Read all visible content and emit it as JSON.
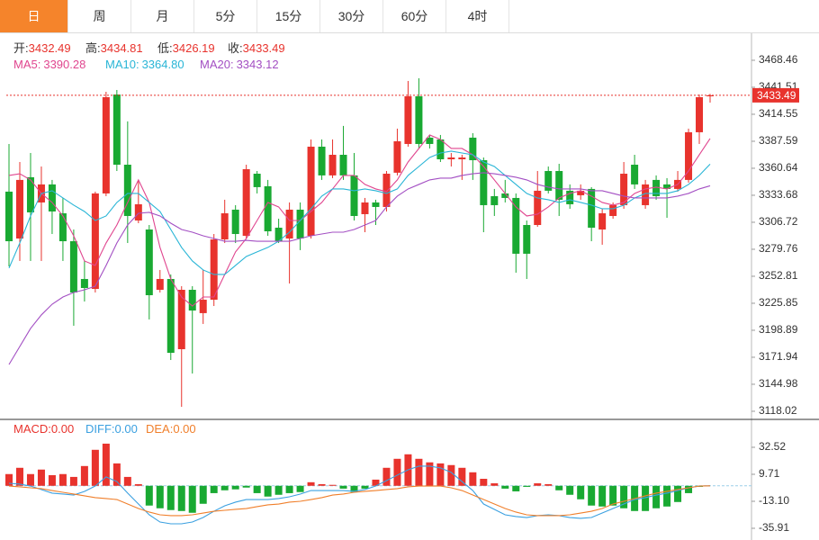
{
  "tabs": [
    "日",
    "周",
    "月",
    "5分",
    "15分",
    "30分",
    "60分",
    "4时"
  ],
  "active_tab": 0,
  "chart_data": [
    {
      "type": "candlestick",
      "ohlc_legend": [
        {
          "label": "开:",
          "value": 3432.49
        },
        {
          "label": "高:",
          "value": 3434.81
        },
        {
          "label": "低:",
          "value": 3426.19
        },
        {
          "label": "收:",
          "value": 3433.49
        }
      ],
      "up_color": "#e8332d",
      "down_color": "#19a932",
      "open": [
        3337.3,
        3290.5,
        3351.7,
        3326.5,
        3344.5,
        3315.7,
        3287.8,
        3250.1,
        3240.2,
        3335.5,
        3434.3,
        3364.2,
        3308.5,
        3299.5,
        3239.3,
        3250.1,
        3180.0,
        3239.3,
        3216.0,
        3229.4,
        3289.6,
        3319.3,
        3293.2,
        3355.2,
        3342.7,
        3301.3,
        3290.5,
        3319.3,
        3293.2,
        3382.2,
        3353.5,
        3374.1,
        3353.5,
        3314.8,
        3326.5,
        3322.0,
        3356.2,
        3384.9,
        3432.5,
        3391.2,
        3389.4,
        3369.6,
        3369.6,
        3391.2,
        3368.7,
        3332.8,
        3335.5,
        3331.0,
        3304.0,
        3304.0,
        3357.9,
        3357.9,
        3338.2,
        3333.7,
        3340.0,
        3299.5,
        3313.0,
        3323.8,
        3364.2,
        3323.8,
        3349.0,
        3344.5,
        3340.0,
        3349.0,
        3396.6,
        3432.49
      ],
      "high": [
        3384.9,
        3366.9,
        3375.9,
        3362.4,
        3349.0,
        3331.0,
        3299.5,
        3268.1,
        3337.3,
        3437.0,
        3438.8,
        3407.4,
        3349.0,
        3304.0,
        3259.1,
        3254.6,
        3242.9,
        3242.9,
        3259.1,
        3295.0,
        3329.2,
        3323.8,
        3364.2,
        3357.9,
        3349.0,
        3310.3,
        3326.5,
        3326.5,
        3389.4,
        3389.4,
        3389.4,
        3402.9,
        3375.9,
        3331.0,
        3329.2,
        3357.9,
        3400.2,
        3447.8,
        3450.5,
        3393.9,
        3393.9,
        3375.9,
        3374.1,
        3395.7,
        3371.4,
        3340.0,
        3349.0,
        3335.5,
        3308.5,
        3357.9,
        3362.4,
        3365.1,
        3344.5,
        3344.5,
        3341.8,
        3320.2,
        3326.5,
        3366.9,
        3374.1,
        3349.0,
        3353.5,
        3350.8,
        3357.9,
        3400.2,
        3434.3,
        3434.81
      ],
      "low": [
        3262.7,
        3268.1,
        3268.1,
        3268.1,
        3295.0,
        3268.1,
        3203.4,
        3227.6,
        3236.6,
        3332.8,
        3357.9,
        3286.0,
        3305.8,
        3209.7,
        3236.6,
        3169.2,
        3122.5,
        3155.7,
        3205.2,
        3223.1,
        3286.0,
        3286.0,
        3290.5,
        3335.5,
        3293.2,
        3286.0,
        3245.6,
        3278.9,
        3290.5,
        3349.0,
        3350.8,
        3349.0,
        3308.5,
        3296.8,
        3304.0,
        3317.5,
        3353.5,
        3382.2,
        3380.4,
        3380.4,
        3366.9,
        3362.4,
        3349.0,
        3349.0,
        3296.8,
        3313.0,
        3326.5,
        3256.4,
        3250.1,
        3302.2,
        3335.5,
        3313.0,
        3320.2,
        3329.2,
        3287.8,
        3284.3,
        3310.3,
        3320.2,
        3340.0,
        3320.2,
        3329.2,
        3311.2,
        3337.3,
        3346.3,
        3384.9,
        3426.19
      ],
      "close": [
        3287.8,
        3349.0,
        3316.6,
        3344.5,
        3317.5,
        3287.8,
        3236.6,
        3241.1,
        3335.5,
        3431.6,
        3364.2,
        3313.0,
        3324.7,
        3233.9,
        3250.1,
        3176.4,
        3239.3,
        3218.6,
        3229.4,
        3289.6,
        3315.7,
        3295.0,
        3359.7,
        3341.8,
        3297.7,
        3287.8,
        3319.3,
        3290.5,
        3382.2,
        3353.5,
        3374.1,
        3353.5,
        3313.0,
        3326.5,
        3322.0,
        3355.2,
        3387.6,
        3432.5,
        3384.9,
        3384.9,
        3369.6,
        3371.4,
        3371.4,
        3368.7,
        3323.8,
        3323.8,
        3331.0,
        3275.3,
        3275.3,
        3338.2,
        3338.2,
        3329.2,
        3324.7,
        3338.2,
        3301.3,
        3315.7,
        3323.8,
        3355.2,
        3344.5,
        3344.5,
        3332.8,
        3340.0,
        3349.0,
        3396.6,
        3431.6,
        3433.49
      ],
      "series": [
        {
          "name": "MA5:",
          "value_label": "3390.28",
          "color": "#e0468f",
          "values": [
            3353.5,
            3355.2,
            3349.0,
            3335.5,
            3326.5,
            3313.0,
            3293.2,
            3268.1,
            3263.6,
            3286.0,
            3304.0,
            3326.5,
            3349.0,
            3326.5,
            3281.6,
            3250.1,
            3232.1,
            3223.1,
            3232.1,
            3232.1,
            3254.6,
            3277.1,
            3290.5,
            3308.5,
            3326.5,
            3322.0,
            3308.5,
            3308.5,
            3317.5,
            3326.5,
            3340.0,
            3353.5,
            3353.5,
            3344.5,
            3340.0,
            3337.3,
            3349.0,
            3366.9,
            3380.4,
            3393.9,
            3389.4,
            3380.4,
            3380.4,
            3374.1,
            3362.4,
            3349.0,
            3335.5,
            3322.0,
            3313.0,
            3314.8,
            3322.0,
            3331.0,
            3335.5,
            3338.2,
            3332.8,
            3326.5,
            3323.8,
            3326.5,
            3335.5,
            3340.0,
            3341.8,
            3340.0,
            3344.5,
            3357.9,
            3374.1,
            3390.28
          ]
        },
        {
          "name": "MA10:",
          "value_label": "3364.80",
          "color": "#29b5d6",
          "values": [
            3260.9,
            3286.0,
            3313.0,
            3335.5,
            3338.2,
            3331.0,
            3323.8,
            3317.5,
            3308.5,
            3313.0,
            3326.5,
            3335.5,
            3335.5,
            3326.5,
            3317.5,
            3299.5,
            3281.6,
            3268.1,
            3259.1,
            3254.6,
            3254.6,
            3263.6,
            3272.6,
            3277.1,
            3281.6,
            3287.8,
            3296.8,
            3308.5,
            3320.2,
            3332.8,
            3340.0,
            3340.0,
            3338.2,
            3340.0,
            3338.2,
            3335.5,
            3340.0,
            3353.5,
            3362.4,
            3371.4,
            3375.9,
            3377.7,
            3375.9,
            3374.1,
            3366.9,
            3362.4,
            3353.5,
            3344.5,
            3335.5,
            3331.0,
            3329.2,
            3326.5,
            3329.2,
            3326.5,
            3323.8,
            3320.2,
            3320.2,
            3323.8,
            3331.0,
            3335.5,
            3335.5,
            3335.5,
            3338.2,
            3344.5,
            3353.5,
            3364.8
          ]
        },
        {
          "name": "MA20:",
          "value_label": "3343.12",
          "color": "#a34fc3",
          "values": [
            3164.7,
            3182.7,
            3200.7,
            3214.2,
            3224.9,
            3232.1,
            3236.6,
            3239.3,
            3242.9,
            3263.6,
            3286.0,
            3304.0,
            3315.7,
            3316.6,
            3313.0,
            3305.8,
            3299.5,
            3296.8,
            3293.2,
            3290.5,
            3287.8,
            3287.8,
            3288.7,
            3287.8,
            3287.8,
            3287.8,
            3287.8,
            3290.5,
            3293.2,
            3295.0,
            3296.8,
            3296.8,
            3299.5,
            3304.0,
            3308.5,
            3322.0,
            3332.8,
            3340.0,
            3344.5,
            3349.0,
            3350.8,
            3350.8,
            3353.5,
            3355.2,
            3356.2,
            3355.2,
            3353.5,
            3351.7,
            3349.0,
            3344.5,
            3341.8,
            3340.0,
            3340.0,
            3340.0,
            3338.2,
            3338.2,
            3335.5,
            3332.8,
            3331.0,
            3331.0,
            3331.0,
            3331.0,
            3332.8,
            3335.5,
            3340.0,
            3343.12
          ]
        }
      ],
      "ylim": [
        3110.8,
        3492.7
      ],
      "yticks": [
        3468.46,
        3441.51,
        3414.55,
        3387.59,
        3360.64,
        3333.68,
        3306.72,
        3279.76,
        3252.81,
        3225.85,
        3198.89,
        3171.94,
        3144.98,
        3118.02
      ]
    },
    {
      "type": "macd",
      "up_color": "#e8332d",
      "down_color": "#19a932",
      "series": [
        {
          "name": "MACD:",
          "value_label": "0.00",
          "color": "#e8332d",
          "kind": "bar",
          "values": [
            9.9,
            15.2,
            9.9,
            13.7,
            9.0,
            9.9,
            7.5,
            16.7,
            30.4,
            35.6,
            18.9,
            7.5,
            1.4,
            -16.7,
            -19.0,
            -20.5,
            -21.3,
            -22.8,
            -15.2,
            -6.2,
            -3.8,
            -3.0,
            -1.5,
            -6.2,
            -9.1,
            -7.6,
            -6.2,
            -5.3,
            3.0,
            1.4,
            0.8,
            -2.4,
            -5.3,
            -2.4,
            5.2,
            15.2,
            22.8,
            26.6,
            22.8,
            19.8,
            18.9,
            17.5,
            15.2,
            11.4,
            5.9,
            2.1,
            -2.4,
            -4.7,
            -0.9,
            2.1,
            1.4,
            -3.8,
            -7.6,
            -11.4,
            -16.7,
            -17.5,
            -16.7,
            -19.0,
            -21.3,
            -21.3,
            -19.0,
            -17.5,
            -13.7,
            -6.2,
            -0.9,
            0
          ]
        },
        {
          "name": "DIFF:",
          "value_label": "0.00",
          "color": "#3ba0e0",
          "kind": "line",
          "values": [
            2.1,
            1.4,
            -0.2,
            -3.2,
            -6.2,
            -7.0,
            -7.8,
            -4.7,
            -0.2,
            7.5,
            3.6,
            -6.2,
            -15.4,
            -24.5,
            -30.6,
            -32.1,
            -32.1,
            -30.6,
            -26.8,
            -21.5,
            -16.9,
            -13.8,
            -11.6,
            -11.6,
            -11.6,
            -10.8,
            -9.3,
            -7.0,
            -4.0,
            -4.0,
            -4.0,
            -4.0,
            -4.7,
            -3.2,
            -0.2,
            4.4,
            9.0,
            13.5,
            16.6,
            16.6,
            15.1,
            11.3,
            3.6,
            -4.0,
            -15.4,
            -19.9,
            -24.5,
            -26.0,
            -26.8,
            -25.2,
            -24.5,
            -25.2,
            -26.8,
            -27.5,
            -26.8,
            -23.0,
            -19.2,
            -15.4,
            -11.6,
            -10.0,
            -7.8,
            -6.2,
            -4.0,
            -1.7,
            -0.2,
            0
          ]
        },
        {
          "name": "DEA:",
          "value_label": "0.00",
          "color": "#f07f2b",
          "kind": "line",
          "values": [
            -0.2,
            -0.9,
            -1.7,
            -2.4,
            -4.0,
            -5.5,
            -7.0,
            -8.5,
            -10.0,
            -10.8,
            -11.6,
            -15.4,
            -19.2,
            -22.2,
            -24.5,
            -25.2,
            -25.2,
            -24.5,
            -23.0,
            -21.5,
            -20.7,
            -19.9,
            -19.2,
            -17.6,
            -16.1,
            -15.4,
            -13.8,
            -13.1,
            -11.6,
            -10.0,
            -7.8,
            -7.0,
            -5.5,
            -4.7,
            -4.0,
            -3.2,
            -2.4,
            -0.9,
            -0.2,
            -0.2,
            -0.2,
            -1.7,
            -4.0,
            -7.8,
            -11.6,
            -15.4,
            -19.2,
            -22.2,
            -24.5,
            -25.2,
            -25.2,
            -25.2,
            -24.5,
            -23.0,
            -21.5,
            -19.2,
            -15.4,
            -13.1,
            -10.8,
            -8.5,
            -6.2,
            -4.7,
            -3.2,
            -1.7,
            -0.2,
            0
          ]
        }
      ],
      "ylim": [
        -44.27,
        54.57
      ],
      "yticks": [
        32.52,
        9.71,
        {
          "value": -13.1,
          "label": "-13.10"
        },
        -35.91
      ]
    }
  ]
}
